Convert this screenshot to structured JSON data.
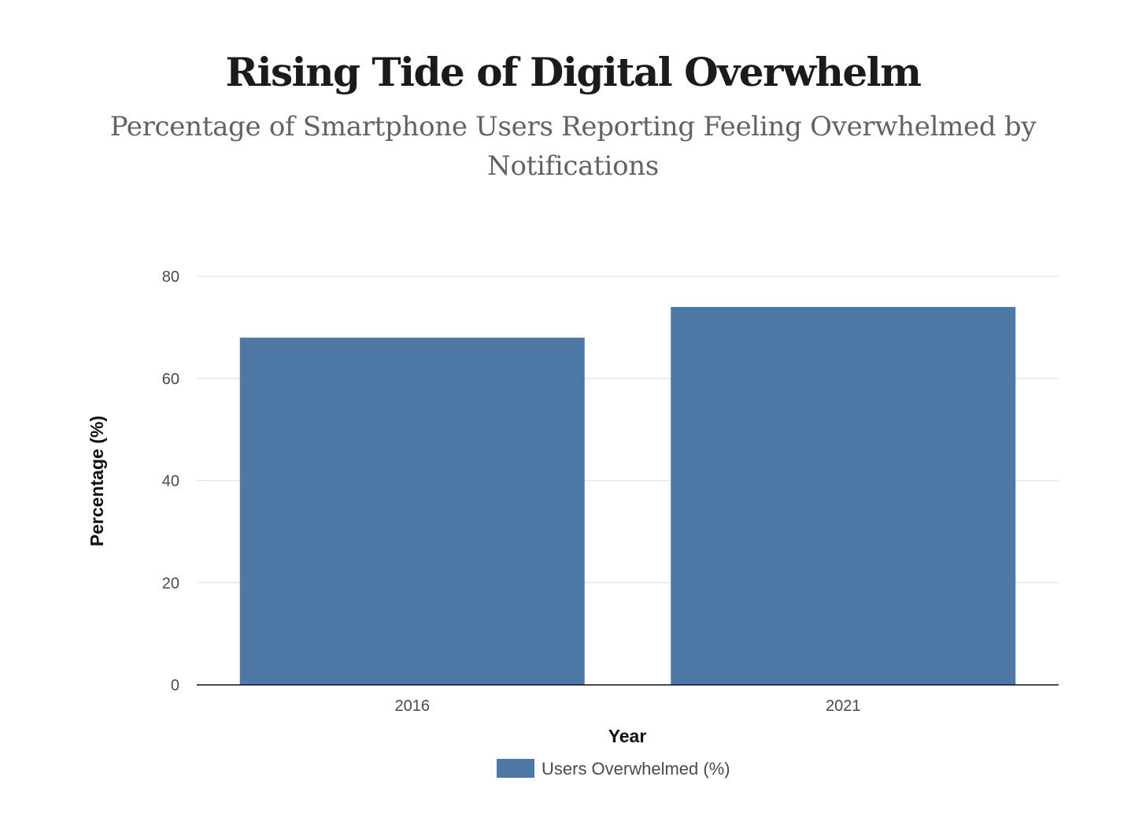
{
  "chart_data": {
    "type": "bar",
    "title": "Rising Tide of Digital Overwhelm",
    "subtitle": "Percentage of Smartphone Users Reporting Feeling Overwhelmed by Notifications",
    "categories": [
      "2016",
      "2021"
    ],
    "series": [
      {
        "name": "Users Overwhelmed (%)",
        "values": [
          68,
          74
        ],
        "color": "#4e79a7"
      }
    ],
    "xlabel": "Year",
    "ylabel": "Percentage (%)",
    "ylim": [
      0,
      80
    ],
    "yticks": [
      0,
      20,
      40,
      60,
      80
    ],
    "grid": true,
    "legend_position": "bottom-center"
  }
}
